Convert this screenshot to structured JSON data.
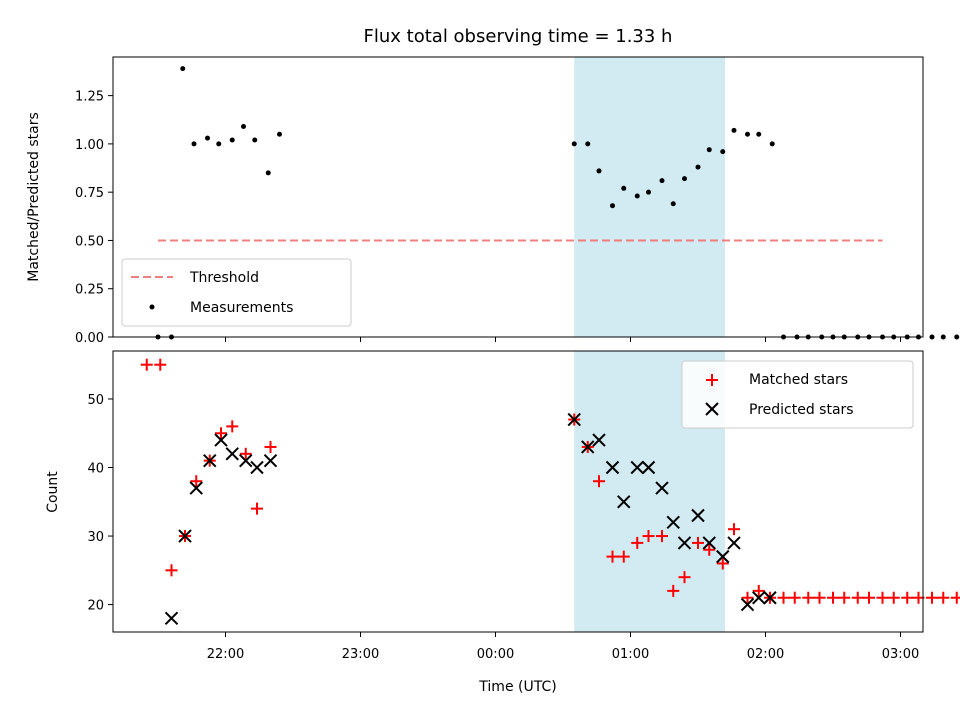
{
  "chart_data": [
    {
      "type": "scatter",
      "title": "Flux total observing time = 1.33 h",
      "xlabel": "",
      "ylabel": "Matched/Predicted stars",
      "ylim": [
        0,
        1.45
      ],
      "yticks": [
        "0.00",
        "0.25",
        "0.50",
        "0.75",
        "1.00",
        "1.25"
      ],
      "legend_position": "lower-left",
      "highlight_x_range": [
        "00:35",
        "01:42"
      ],
      "highlight_color": "#add8e6",
      "threshold": {
        "name": "Threshold",
        "value": 0.5,
        "x_range": [
          "21:30",
          "02:52"
        ],
        "color": "#f08080"
      },
      "series": [
        {
          "name": "Measurements",
          "color": "#000000",
          "marker": "dot",
          "points": [
            [
              "21:30",
              0.0
            ],
            [
              "21:36",
              0.0
            ],
            [
              "21:41",
              1.39
            ],
            [
              "21:46",
              1.0
            ],
            [
              "21:52",
              1.03
            ],
            [
              "21:57",
              1.0
            ],
            [
              "22:03",
              1.02
            ],
            [
              "22:08",
              1.09
            ],
            [
              "22:13",
              1.02
            ],
            [
              "22:19",
              0.85
            ],
            [
              "22:24",
              1.05
            ],
            [
              "00:35",
              1.0
            ],
            [
              "00:41",
              1.0
            ],
            [
              "00:46",
              0.86
            ],
            [
              "00:52",
              0.68
            ],
            [
              "00:57",
              0.77
            ],
            [
              "01:03",
              0.73
            ],
            [
              "01:08",
              0.75
            ],
            [
              "01:14",
              0.81
            ],
            [
              "01:19",
              0.69
            ],
            [
              "01:24",
              0.82
            ],
            [
              "01:30",
              0.88
            ],
            [
              "01:35",
              0.97
            ],
            [
              "01:41",
              0.96
            ],
            [
              "01:46",
              1.07
            ],
            [
              "01:52",
              1.05
            ],
            [
              "01:57",
              1.05
            ],
            [
              "02:03",
              1.0
            ],
            [
              "02:08",
              0.0
            ],
            [
              "02:14",
              0.0
            ],
            [
              "02:19",
              0.0
            ],
            [
              "02:25",
              0.0
            ],
            [
              "02:30",
              0.0
            ],
            [
              "02:35",
              0.0
            ],
            [
              "02:41",
              0.0
            ],
            [
              "02:46",
              0.0
            ],
            [
              "02:52",
              0.0
            ],
            [
              "02:57",
              0.0
            ],
            [
              "03:03",
              0.0
            ],
            [
              "03:08",
              0.0
            ],
            [
              "03:14",
              0.0
            ],
            [
              "03:19",
              0.0
            ],
            [
              "03:25",
              0.0
            ]
          ]
        }
      ]
    },
    {
      "type": "scatter",
      "title": "",
      "xlabel": "Time (UTC)",
      "ylabel": "Count",
      "ylim": [
        16,
        57
      ],
      "yticks": [
        "20",
        "30",
        "40",
        "50"
      ],
      "xlim": [
        "21:10",
        "03:10"
      ],
      "xticks": [
        "22:00",
        "23:00",
        "00:00",
        "01:00",
        "02:00",
        "03:00"
      ],
      "legend_position": "top-right",
      "highlight_x_range": [
        "00:35",
        "01:42"
      ],
      "highlight_color": "#add8e6",
      "series": [
        {
          "name": "Matched stars",
          "color": "#ff0000",
          "marker": "plus",
          "points": [
            [
              "21:25",
              55
            ],
            [
              "21:31",
              55
            ],
            [
              "21:36",
              25
            ],
            [
              "21:42",
              30
            ],
            [
              "21:47",
              38
            ],
            [
              "21:53",
              41
            ],
            [
              "21:58",
              45
            ],
            [
              "22:03",
              46
            ],
            [
              "22:09",
              42
            ],
            [
              "22:14",
              34
            ],
            [
              "22:20",
              43
            ],
            [
              "00:35",
              47
            ],
            [
              "00:41",
              43
            ],
            [
              "00:46",
              38
            ],
            [
              "00:52",
              27
            ],
            [
              "00:57",
              27
            ],
            [
              "01:03",
              29
            ],
            [
              "01:08",
              30
            ],
            [
              "01:14",
              30
            ],
            [
              "01:19",
              22
            ],
            [
              "01:24",
              24
            ],
            [
              "01:30",
              29
            ],
            [
              "01:35",
              28
            ],
            [
              "01:41",
              26
            ],
            [
              "01:46",
              31
            ],
            [
              "01:52",
              21
            ],
            [
              "01:57",
              22
            ],
            [
              "02:02",
              21
            ],
            [
              "02:08",
              21
            ],
            [
              "02:13",
              21
            ],
            [
              "02:19",
              21
            ],
            [
              "02:24",
              21
            ],
            [
              "02:30",
              21
            ],
            [
              "02:35",
              21
            ],
            [
              "02:41",
              21
            ],
            [
              "02:46",
              21
            ],
            [
              "02:52",
              21
            ],
            [
              "02:57",
              21
            ],
            [
              "03:03",
              21
            ],
            [
              "03:08",
              21
            ],
            [
              "03:14",
              21
            ],
            [
              "03:19",
              21
            ],
            [
              "03:25",
              21
            ],
            [
              "03:30",
              21
            ]
          ]
        },
        {
          "name": "Predicted stars",
          "color": "#000000",
          "marker": "x",
          "points": [
            [
              "21:36",
              18
            ],
            [
              "21:42",
              30
            ],
            [
              "21:47",
              37
            ],
            [
              "21:53",
              41
            ],
            [
              "21:58",
              44
            ],
            [
              "22:03",
              42
            ],
            [
              "22:09",
              41
            ],
            [
              "22:14",
              40
            ],
            [
              "22:20",
              41
            ],
            [
              "00:35",
              47
            ],
            [
              "00:41",
              43
            ],
            [
              "00:46",
              44
            ],
            [
              "00:52",
              40
            ],
            [
              "00:57",
              35
            ],
            [
              "01:03",
              40
            ],
            [
              "01:08",
              40
            ],
            [
              "01:14",
              37
            ],
            [
              "01:19",
              32
            ],
            [
              "01:24",
              29
            ],
            [
              "01:30",
              33
            ],
            [
              "01:35",
              29
            ],
            [
              "01:41",
              27
            ],
            [
              "01:46",
              29
            ],
            [
              "01:52",
              20
            ],
            [
              "01:57",
              21
            ],
            [
              "02:02",
              21
            ]
          ]
        }
      ]
    }
  ]
}
